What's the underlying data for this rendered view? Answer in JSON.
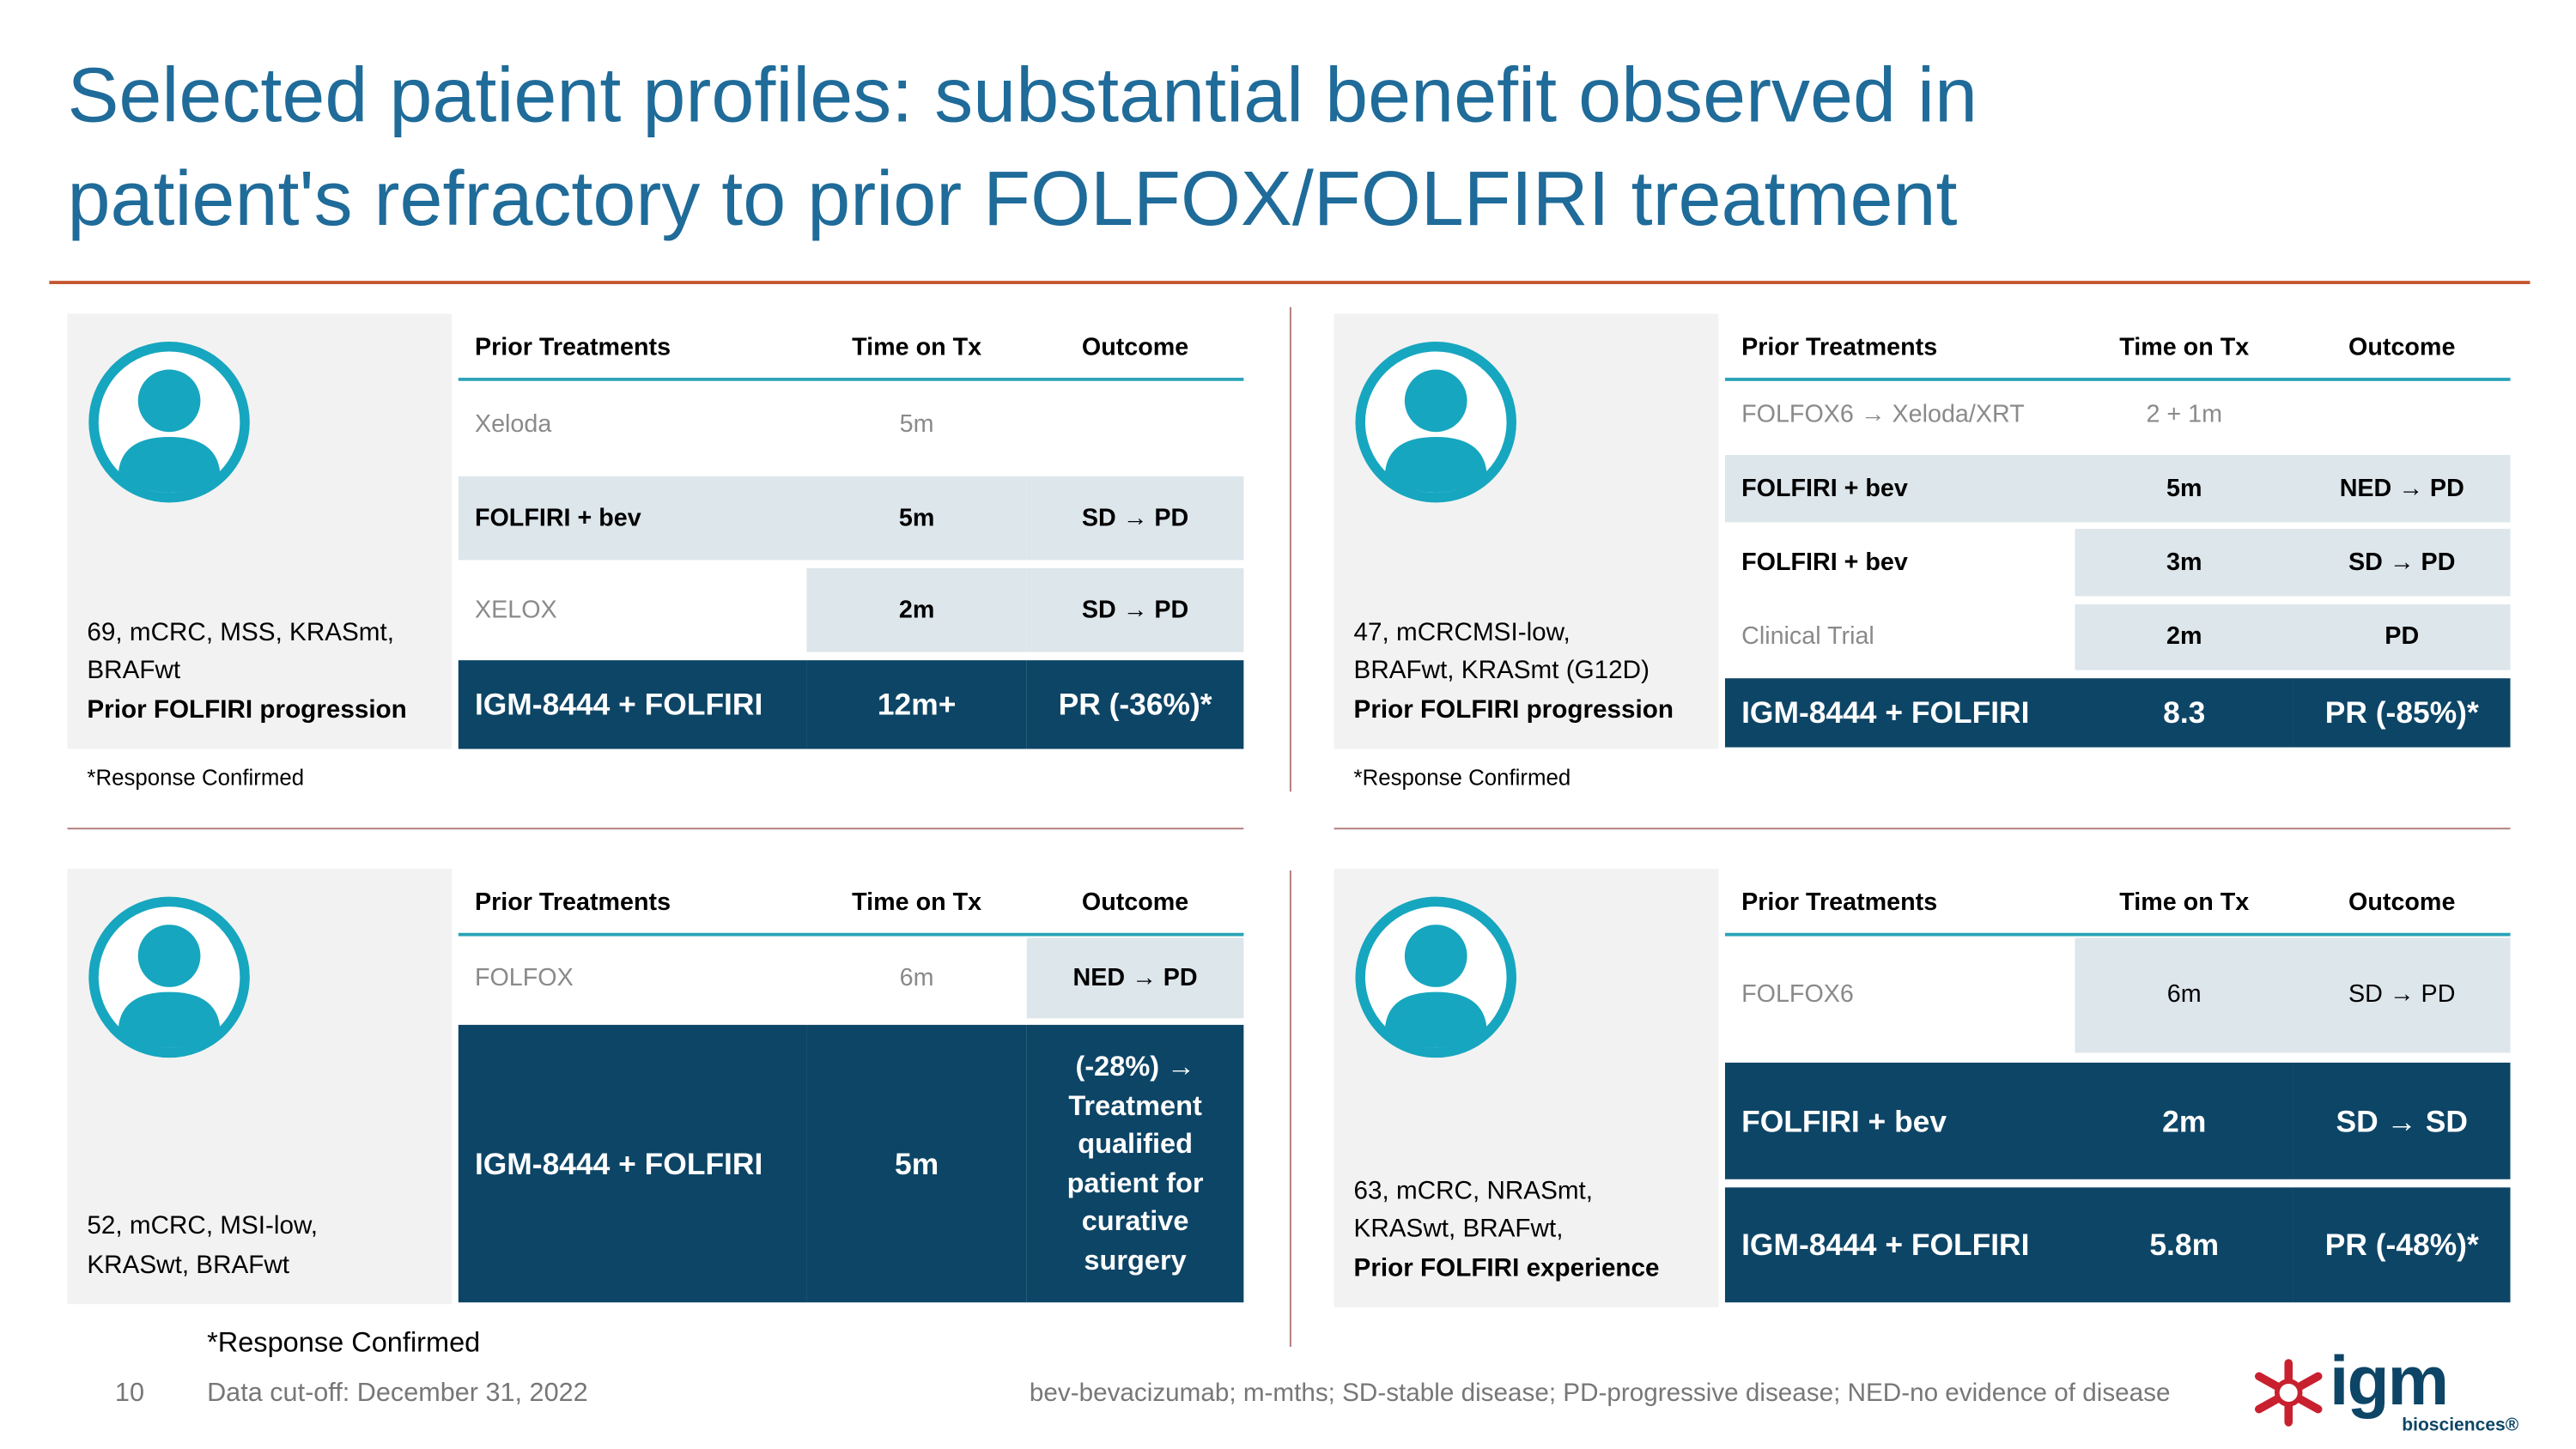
{
  "title_lines": [
    "Selected patient profiles: substantial benefit observed in",
    "patient's refractory to prior FOLFOX/FOLFIRI treatment"
  ],
  "panels": [
    {
      "patient": [
        "69, mCRC, MSS, KRASmt,",
        "BRAFwt",
        "Prior FOLFIRI progression"
      ],
      "footnote": "*Response Confirmed",
      "header": [
        "Prior Treatments",
        "Time on Tx",
        "Outcome"
      ],
      "rows": [
        [
          "Xeloda",
          "5m"
        ],
        [
          "FOLFIRI + bev",
          "5m",
          "SD → PD"
        ],
        [
          "XELOX",
          "2m",
          "SD → PD"
        ],
        [
          "IGM-8444 + FOLFIRI",
          "12m+",
          "PR (-36%)*"
        ]
      ]
    },
    {
      "patient": [
        "47, mCRCMSI-low,",
        "BRAFwt, KRASmt (G12D)",
        "Prior FOLFIRI progression"
      ],
      "footnote": "*Response Confirmed",
      "header": [
        "Prior Treatments",
        "Time on Tx",
        "Outcome"
      ],
      "rows": [
        [
          "FOLFOX6 → Xeloda/XRT",
          "2 + 1m"
        ],
        [
          "FOLFIRI + bev",
          "5m",
          "NED → PD"
        ],
        [
          "FOLFIRI + bev",
          "3m",
          "SD → PD"
        ],
        [
          "Clinical Trial",
          "2m",
          "PD"
        ],
        [
          "IGM-8444 + FOLFIRI",
          "8.3",
          "PR (-85%)*"
        ]
      ]
    },
    {
      "patient": [
        "52, mCRC, MSI-low,",
        "KRASwt, BRAFwt"
      ],
      "footnote": "*Response Confirmed",
      "header": [
        "Prior Treatments",
        "Time on Tx",
        "Outcome"
      ],
      "rows": [
        [
          "FOLFOX",
          "6m",
          "NED → PD"
        ],
        [
          "IGM-8444 + FOLFIRI",
          "5m",
          "(-28%) → Treatment qualified patient for curative surgery"
        ]
      ]
    },
    {
      "patient": [
        "63, mCRC, NRASmt,",
        "KRASwt, BRAFwt,",
        "Prior FOLFIRI experience"
      ],
      "header": [
        "Prior Treatments",
        "Time on Tx",
        "Outcome"
      ],
      "rows": [
        [
          "FOLFOX6",
          "6m",
          "SD → PD"
        ],
        [
          "FOLFIRI + bev",
          "2m",
          "SD → SD"
        ],
        [
          "IGM-8444 + FOLFIRI",
          "5.8m",
          "PR (-48%)*"
        ]
      ]
    }
  ],
  "footer": {
    "page_number": "10",
    "cutoff": "Data cut-off: December 31, 2022",
    "abbreviations": "bev-bevacizumab; m-mths; SD-stable disease; PD-progressive disease; NED-no evidence of disease"
  },
  "logo": {
    "mark": "igm",
    "sub": "biosciences®"
  }
}
